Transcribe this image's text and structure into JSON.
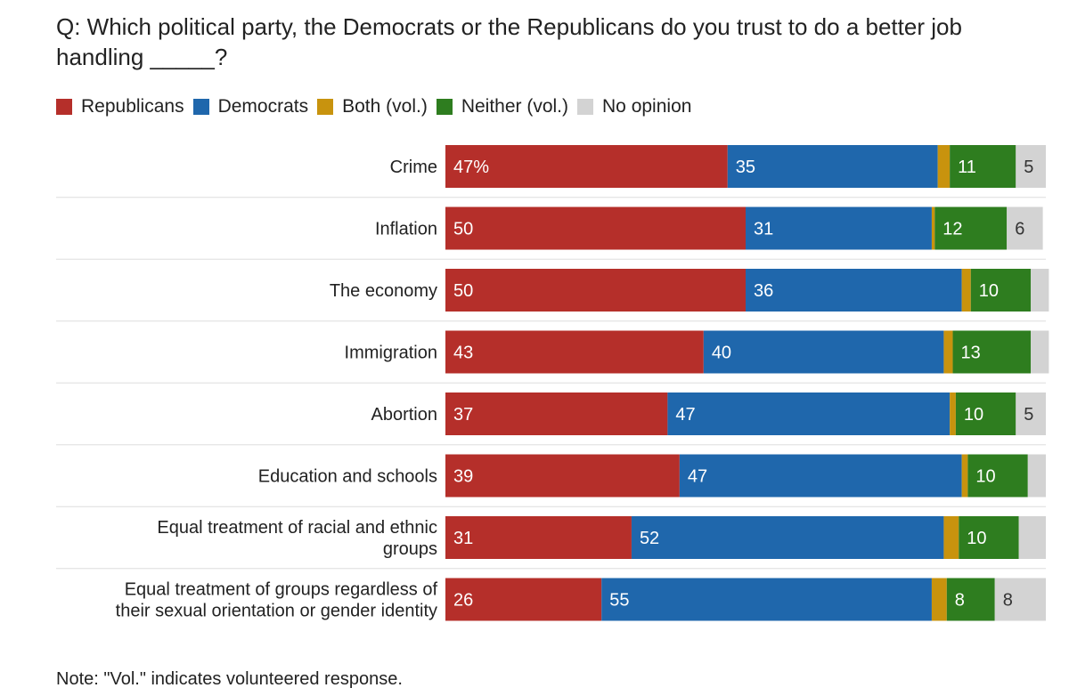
{
  "chart_data": {
    "type": "bar",
    "orientation": "horizontal",
    "stacked": true,
    "title": "Q: Which political party, the Democrats or the Republicans do you trust to do a better job handling _____?",
    "categories": [
      "Crime",
      "Inflation",
      "The economy",
      "Immigration",
      "Abortion",
      "Education and schools",
      "Equal treatment of racial and ethnic groups",
      "Equal treatment of groups regardless of their sexual orientation or gender identity"
    ],
    "category_lines": [
      [
        "Crime"
      ],
      [
        "Inflation"
      ],
      [
        "The economy"
      ],
      [
        "Immigration"
      ],
      [
        "Abortion"
      ],
      [
        "Education and schools"
      ],
      [
        "Equal treatment of racial and ethnic",
        "groups"
      ],
      [
        "Equal treatment of groups regardless of",
        "their sexual orientation or gender identity"
      ]
    ],
    "series": [
      {
        "name": "Republicans",
        "color": "#b52f2a",
        "label_color": "#ffffff",
        "values": [
          47,
          50,
          50,
          43,
          37,
          39,
          31,
          26
        ],
        "labels": [
          "47%",
          "50",
          "50",
          "43",
          "37",
          "39",
          "31",
          "26"
        ]
      },
      {
        "name": "Democrats",
        "color": "#1f67ac",
        "label_color": "#ffffff",
        "values": [
          35,
          31,
          36,
          40,
          47,
          47,
          52,
          55
        ],
        "labels": [
          "35",
          "31",
          "36",
          "40",
          "47",
          "47",
          "52",
          "55"
        ]
      },
      {
        "name": "Both (vol.)",
        "color": "#c8930e",
        "label_color": "#ffffff",
        "values": [
          2,
          0.5,
          1.5,
          1.5,
          1,
          1,
          2.5,
          2.5
        ],
        "labels": [
          "",
          "",
          "",
          "",
          "",
          "",
          "",
          ""
        ]
      },
      {
        "name": "Neither (vol.)",
        "color": "#2e7d1f",
        "label_color": "#ffffff",
        "values": [
          11,
          12,
          10,
          13,
          10,
          10,
          10,
          8
        ],
        "labels": [
          "11",
          "12",
          "10",
          "13",
          "10",
          "10",
          "10",
          "8"
        ]
      },
      {
        "name": "No opinion",
        "color": "#d3d3d3",
        "label_color": "#333333",
        "values": [
          5,
          6,
          3,
          3,
          5,
          3,
          4.5,
          8.5
        ],
        "labels": [
          "5",
          "6",
          "",
          "",
          "5",
          "",
          "",
          "8"
        ]
      }
    ],
    "xlim": [
      0,
      100
    ],
    "legend_position": "top-left"
  },
  "note": "Note: \"Vol.\" indicates volunteered response."
}
